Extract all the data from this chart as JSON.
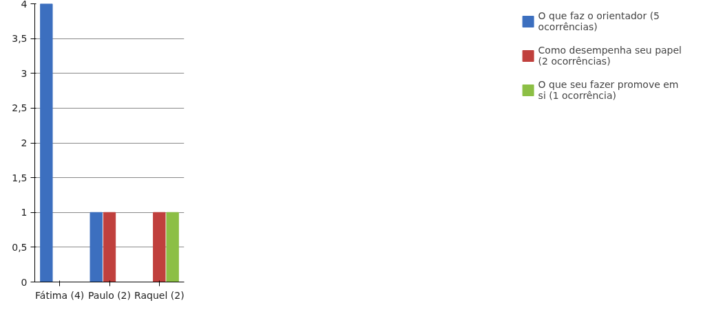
{
  "chart_data": {
    "type": "bar",
    "categories": [
      "Fátima (4)",
      "Paulo (2)",
      "Raquel (2)"
    ],
    "series": [
      {
        "name": "O que faz o orientador (5 ocorrências)",
        "color": "#3c6fbf",
        "values": [
          4,
          1,
          0
        ]
      },
      {
        "name": "Como desempenha seu papel (2 ocorrências)",
        "color": "#c0403d",
        "values": [
          0,
          1,
          1
        ]
      },
      {
        "name": "O que seu fazer promove em si (1 ocorrência)",
        "color": "#8cbf45",
        "values": [
          0,
          0,
          1
        ]
      }
    ],
    "ylim": [
      0,
      4
    ],
    "yticks": [
      0,
      {
        "value": 0.5,
        "label": "0,5"
      },
      1,
      {
        "value": 1.5,
        "label": "1,5"
      },
      2,
      {
        "value": 2.5,
        "label": "2,5"
      },
      3,
      {
        "value": 3.5,
        "label": "3,5"
      },
      4
    ],
    "grid": "y",
    "legend": "right"
  }
}
